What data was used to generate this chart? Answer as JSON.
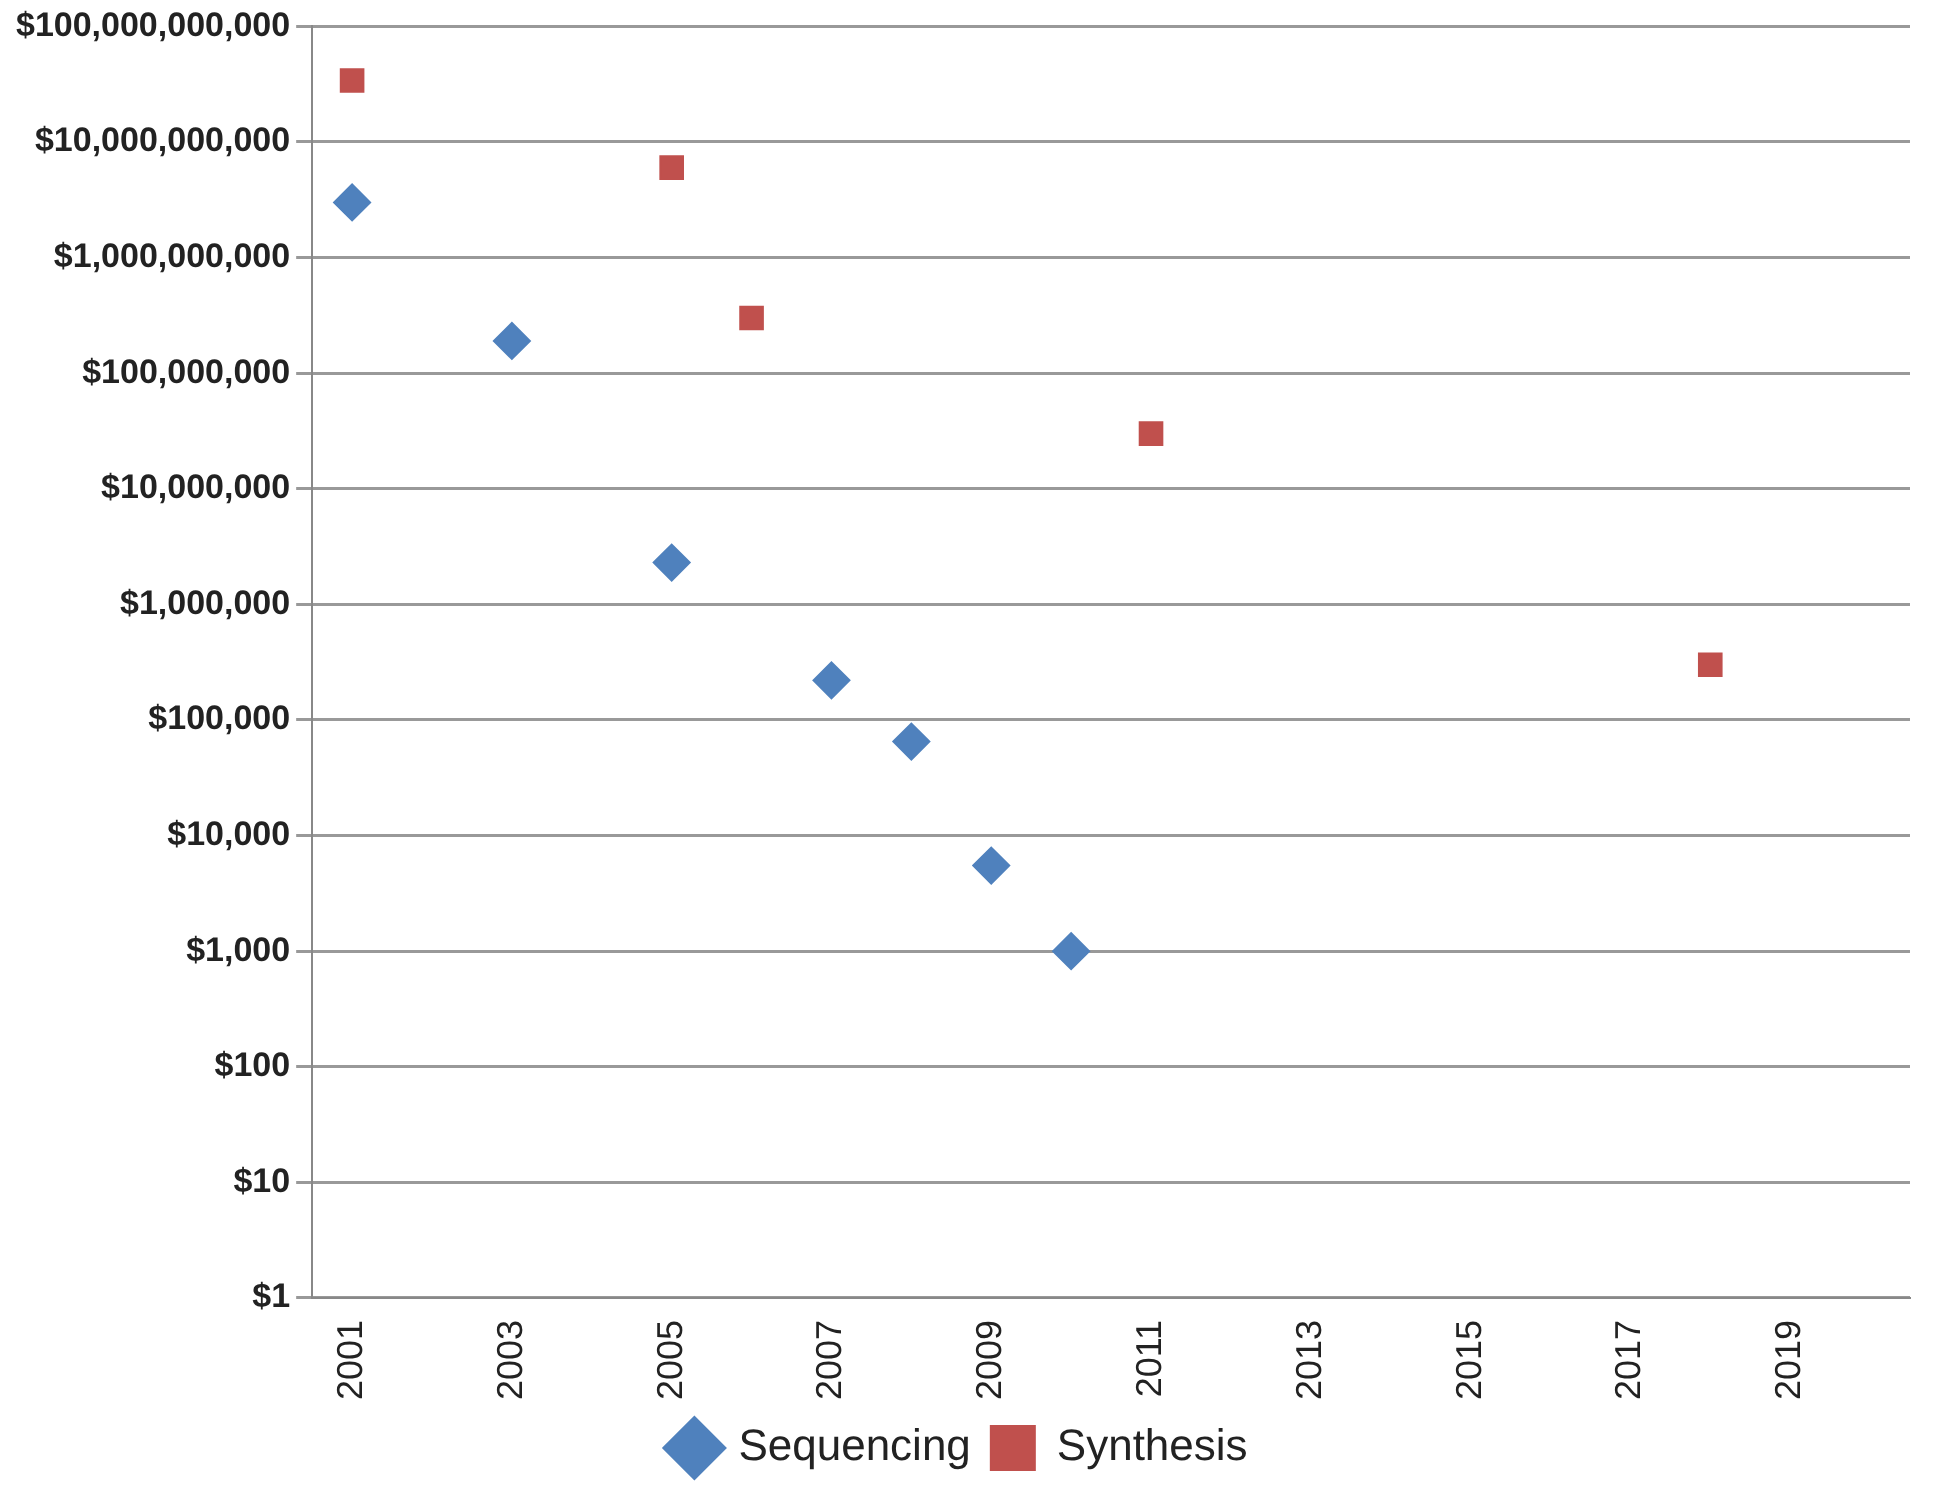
{
  "chart_data": {
    "type": "scatter",
    "log": "y",
    "grid": "y",
    "legend": "bottom",
    "xlim": [
      2000.5,
      2020.5
    ],
    "xticks": [
      2001,
      2003,
      2005,
      2007,
      2009,
      2011,
      2013,
      2015,
      2017,
      2019
    ],
    "ylim": [
      1,
      100000000000
    ],
    "yticks": [
      {
        "value": 1,
        "label": "$1"
      },
      {
        "value": 10,
        "label": "$10"
      },
      {
        "value": 100,
        "label": "$100"
      },
      {
        "value": 1000,
        "label": "$1,000"
      },
      {
        "value": 10000,
        "label": "$10,000"
      },
      {
        "value": 100000,
        "label": "$100,000"
      },
      {
        "value": 1000000,
        "label": "$1,000,000"
      },
      {
        "value": 10000000,
        "label": "$10,000,000"
      },
      {
        "value": 100000000,
        "label": "$100,000,000"
      },
      {
        "value": 1000000000,
        "label": "$1,000,000,000"
      },
      {
        "value": 10000000000,
        "label": "$10,000,000,000"
      },
      {
        "value": 100000000000,
        "label": "$100,000,000,000"
      }
    ],
    "series": [
      {
        "name": "Sequencing",
        "color": "#4f81bd",
        "marker": "diamond",
        "x": [
          2001,
          2003,
          2005,
          2007,
          2008,
          2009,
          2010
        ],
        "values": [
          3000000000,
          190000000,
          2300000,
          220000,
          65000,
          5500,
          1000
        ]
      },
      {
        "name": "Synthesis",
        "color": "#c0504d",
        "marker": "square",
        "x": [
          2001,
          2005,
          2006,
          2011,
          2018
        ],
        "values": [
          34000000000,
          6000000000,
          300000000,
          30000000,
          300000
        ]
      }
    ]
  }
}
